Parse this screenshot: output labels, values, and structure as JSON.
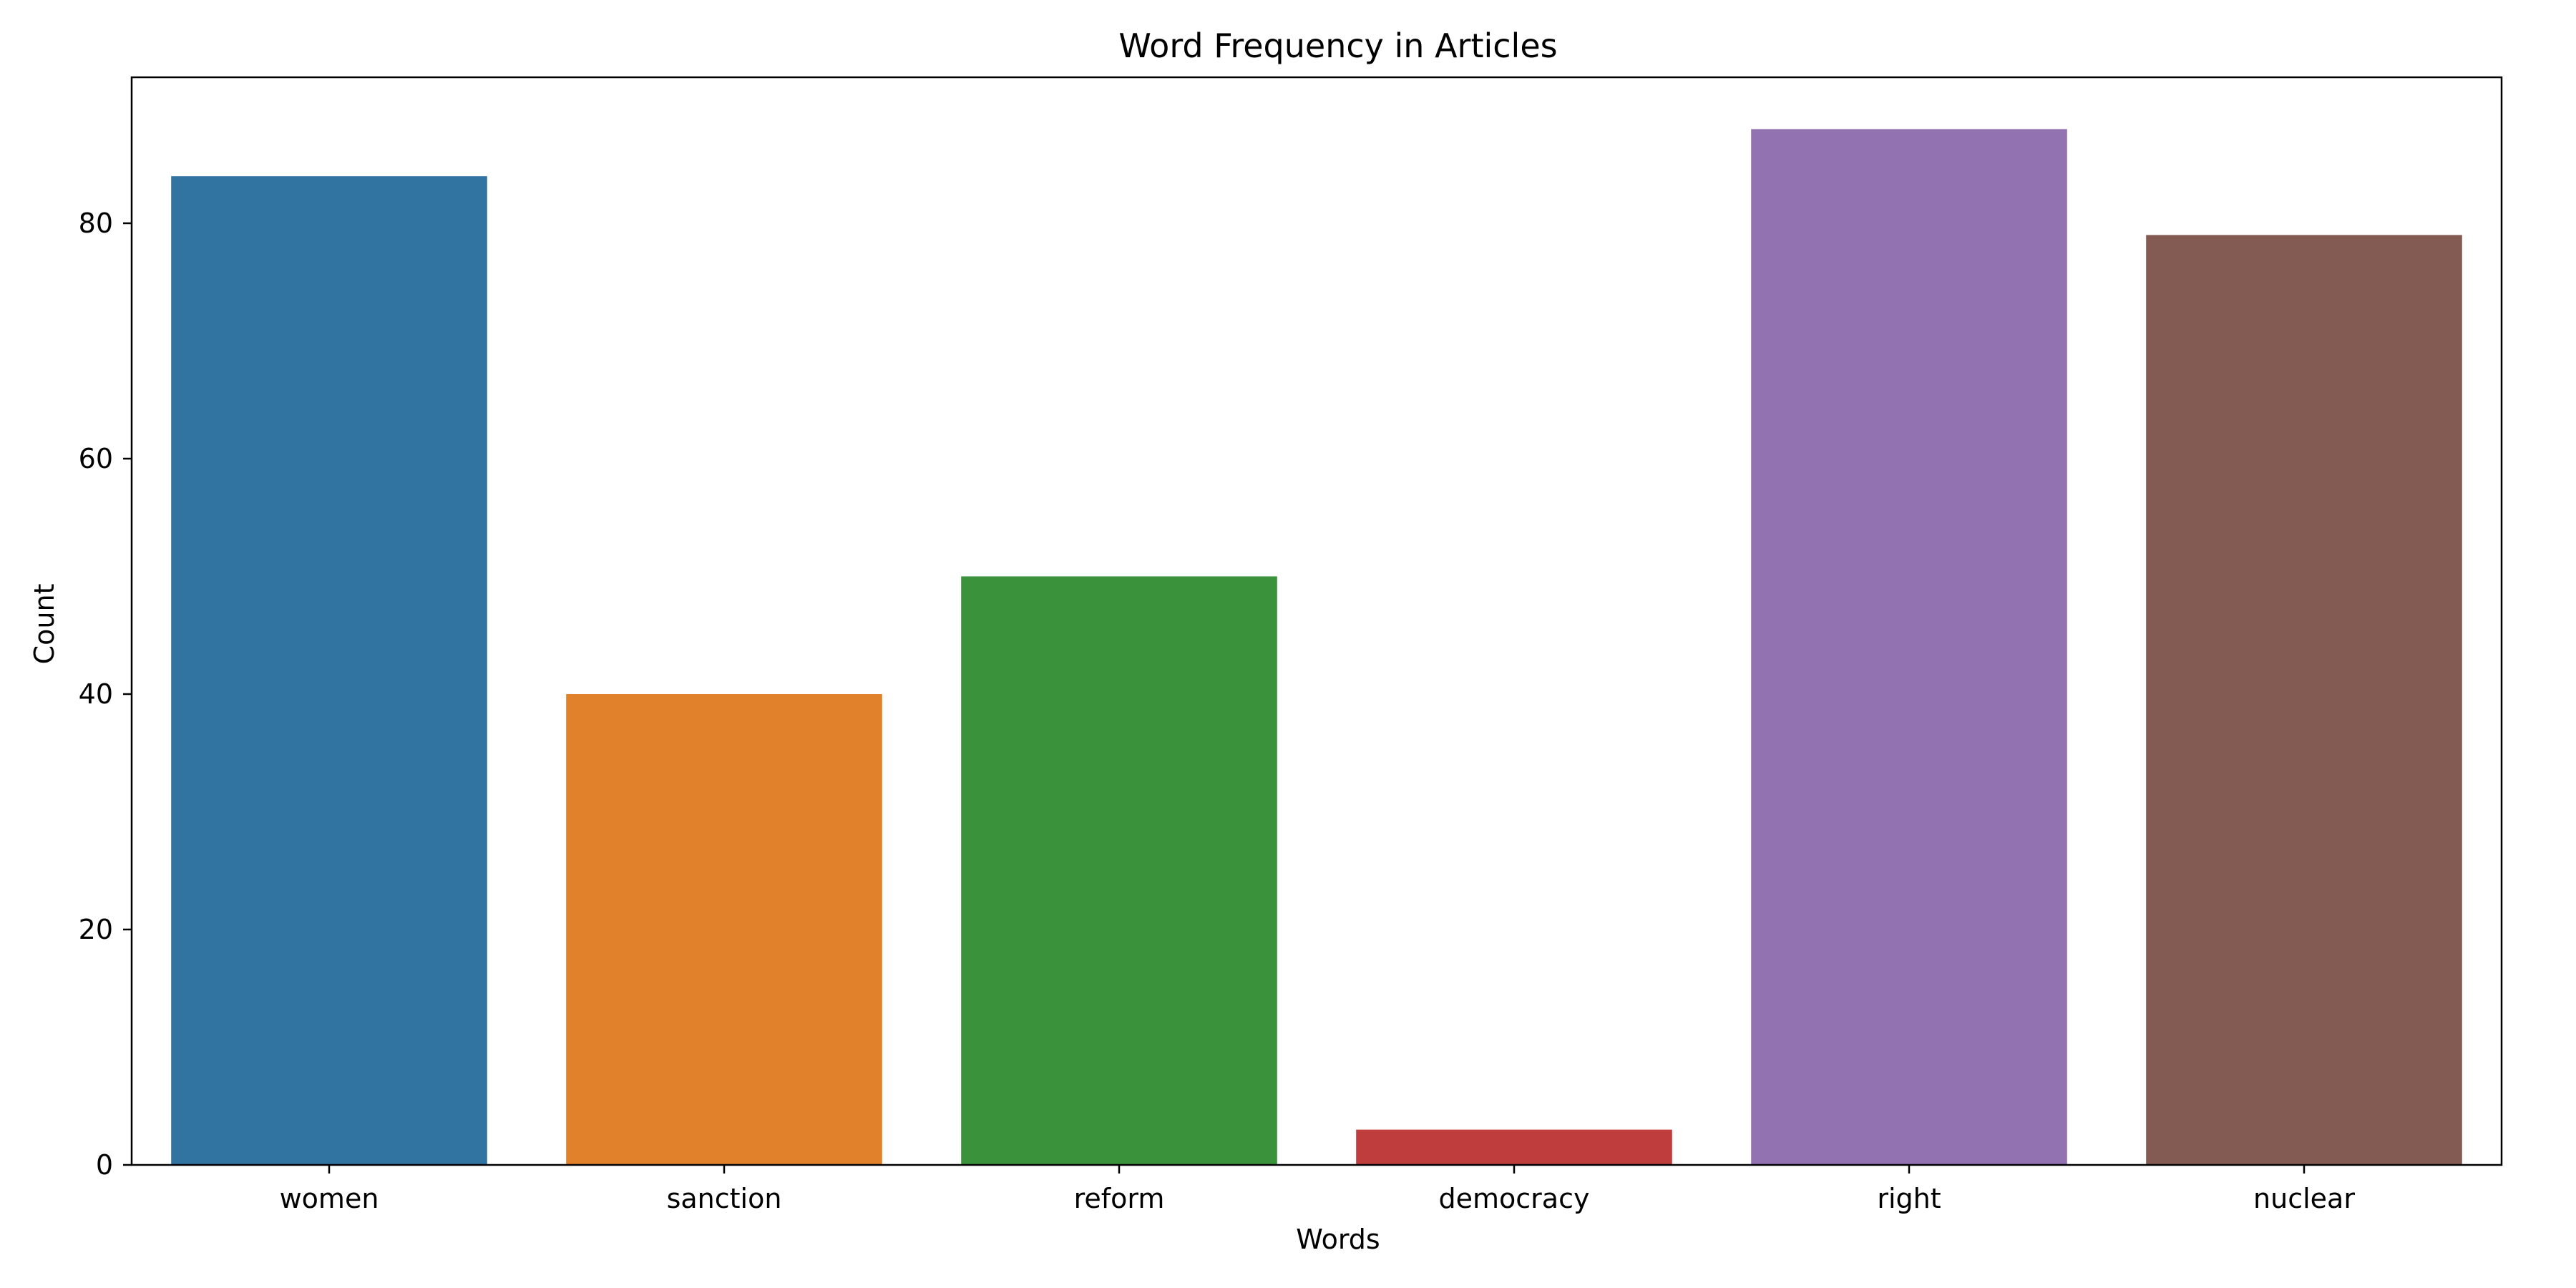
{
  "chart_data": {
    "type": "bar",
    "title": "Word Frequency in Articles",
    "xlabel": "Words",
    "ylabel": "Count",
    "categories": [
      "women",
      "sanction",
      "reform",
      "democracy",
      "right",
      "nuclear"
    ],
    "values": [
      84,
      40,
      50,
      3,
      88,
      79
    ],
    "colors": [
      "#3274a1",
      "#e1812c",
      "#3a923a",
      "#c03d3e",
      "#9372b2",
      "#845b53"
    ],
    "ylim": [
      0,
      92.4
    ],
    "yticks": [
      0,
      20,
      40,
      60,
      80
    ],
    "grid": false,
    "legend": "none"
  }
}
